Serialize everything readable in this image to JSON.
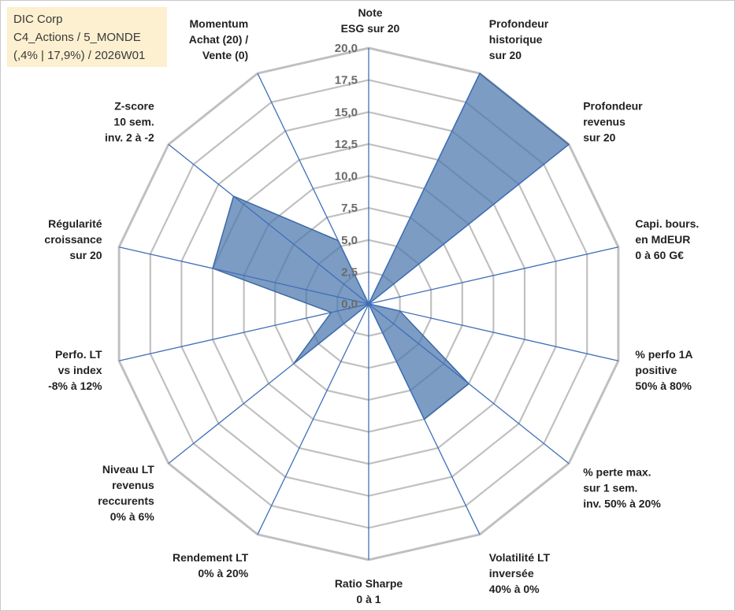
{
  "title_box": {
    "line1": "DIC Corp",
    "line2": "C4_Actions / 5_MONDE",
    "line3": "(,4% | 17,9%) / 2026W01"
  },
  "colors": {
    "grid": "#c0c0c0",
    "spoke": "#3f6fb8",
    "fill": "#4a76ad",
    "fill_opacity": "0.72",
    "series_line": "#3d6aa5"
  },
  "chart_data": {
    "type": "radar",
    "title": "",
    "rmax": 20,
    "ticks": [
      "0,0",
      "2,5",
      "5,0",
      "7,5",
      "10,0",
      "12,5",
      "15,0",
      "17,5",
      "20,0"
    ],
    "tick_values": [
      0,
      2.5,
      5,
      7.5,
      10,
      12.5,
      15,
      17.5,
      20
    ],
    "categories": [
      [
        "Note",
        "ESG sur 20"
      ],
      [
        "Profondeur",
        "historique",
        "sur 20"
      ],
      [
        "Profondeur",
        "revenus",
        "sur 20"
      ],
      [
        "Capi. bours.",
        "en MdEUR",
        "0 à 60 G€"
      ],
      [
        "% perfo 1A",
        "positive",
        "50% à 80%"
      ],
      [
        "% perte max.",
        "sur 1 sem.",
        "inv. 50% à 20%"
      ],
      [
        "Volatilité LT",
        "inversée",
        "40% à 0%"
      ],
      [
        "Ratio Sharpe",
        "0 à 1"
      ],
      [
        "Rendement LT",
        "0% à 20%"
      ],
      [
        "Niveau LT",
        "revenus",
        "reccurents",
        "0% à 6%"
      ],
      [
        "Perfo. LT",
        "vs index",
        "-8% à 12%"
      ],
      [
        "Régularité",
        "croissance",
        "sur 20"
      ],
      [
        "Z-score",
        "10 sem.",
        "inv. 2 à -2"
      ],
      [
        "Momentum",
        "Achat (20) /",
        "Vente (0)"
      ]
    ],
    "series": [
      {
        "name": "DIC Corp",
        "values": [
          0,
          20,
          20,
          0,
          2.5,
          10,
          10,
          0,
          0,
          7.5,
          3,
          12.5,
          13.5,
          5.5
        ]
      }
    ]
  }
}
